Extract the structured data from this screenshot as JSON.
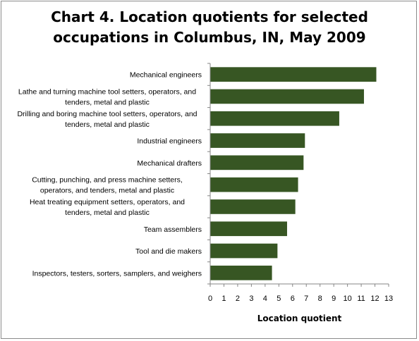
{
  "chart_data": {
    "type": "bar",
    "orientation": "horizontal",
    "title": "Chart 4. Location quotients for selected occupations in Columbus, IN, May 2009",
    "title_lines": [
      "Chart 4. Location quotients for selected",
      "occupations in Columbus, IN, May 2009"
    ],
    "xlabel": "Location quotient",
    "ylabel": "",
    "xlim": [
      0,
      13
    ],
    "xticks": [
      0,
      1,
      2,
      3,
      4,
      5,
      6,
      7,
      8,
      9,
      10,
      11,
      12,
      13
    ],
    "grid": false,
    "legend": "none",
    "bar_color": "#375623",
    "categories": [
      [
        "Mechanical engineers"
      ],
      [
        "Lathe and turning machine tool setters, operators, and",
        "tenders, metal and plastic"
      ],
      [
        "Drilling and boring machine tool setters, operators, and",
        "tenders, metal and plastic"
      ],
      [
        "Industrial engineers"
      ],
      [
        "Mechanical drafters"
      ],
      [
        "Cutting, punching, and press machine setters,",
        "operators, and tenders, metal and plastic"
      ],
      [
        "Heat treating equipment setters, operators, and",
        "tenders, metal and plastic"
      ],
      [
        "Team assemblers"
      ],
      [
        "Tool and die makers"
      ],
      [
        "Inspectors, testers, sorters, samplers, and weighers"
      ]
    ],
    "values": [
      12.1,
      11.2,
      9.4,
      6.9,
      6.8,
      6.4,
      6.2,
      5.6,
      4.9,
      4.5
    ]
  }
}
